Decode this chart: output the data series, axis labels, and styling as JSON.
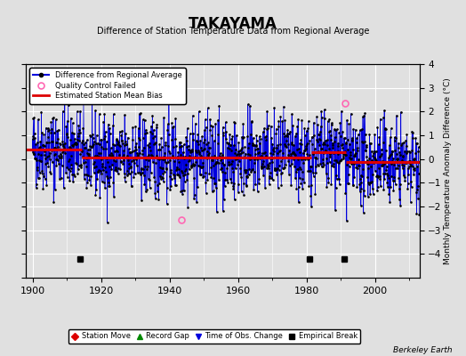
{
  "title": "TAKAYAMA",
  "subtitle": "Difference of Station Temperature Data from Regional Average",
  "ylabel": "Monthly Temperature Anomaly Difference (°C)",
  "xlim": [
    1898,
    2013
  ],
  "ylim": [
    -5,
    4
  ],
  "yticks": [
    -4,
    -3,
    -2,
    -1,
    0,
    1,
    2,
    3,
    4
  ],
  "xticks": [
    1900,
    1920,
    1940,
    1960,
    1980,
    2000
  ],
  "background_color": "#e0e0e0",
  "plot_bg_color": "#e0e0e0",
  "grid_color": "#ffffff",
  "seed": 42,
  "data_std": 0.85,
  "bias_segments": [
    {
      "x_start": 1898,
      "x_end": 1914.5,
      "bias": 0.4
    },
    {
      "x_start": 1914.5,
      "x_end": 1981.5,
      "bias": 0.07
    },
    {
      "x_start": 1981.5,
      "x_end": 1991.5,
      "bias": 0.27
    },
    {
      "x_start": 1991.5,
      "x_end": 2013,
      "bias": -0.12
    }
  ],
  "empirical_breaks": [
    {
      "year": 1914.5,
      "plot_year": 1914
    },
    {
      "year": 1981.5,
      "plot_year": 1981
    },
    {
      "year": 1991.5,
      "plot_year": 1991
    }
  ],
  "qc_failed": [
    {
      "year": 1943.5,
      "value": -2.55
    },
    {
      "year": 1991.4,
      "value": 2.35
    }
  ],
  "legend1_items": [
    {
      "label": "Difference from Regional Average"
    },
    {
      "label": "Quality Control Failed"
    },
    {
      "label": "Estimated Station Mean Bias"
    }
  ],
  "legend2_items": [
    {
      "label": "Station Move"
    },
    {
      "label": "Record Gap"
    },
    {
      "label": "Time of Obs. Change"
    },
    {
      "label": "Empirical Break"
    }
  ],
  "berkeley_earth_label": "Berkeley Earth",
  "line_color": "#0000dd",
  "dot_color": "#000000",
  "bias_color": "#dd0000",
  "qc_color": "#ff69b4",
  "break_color": "#000000",
  "sm_color": "#dd0000",
  "rg_color": "#008800",
  "toc_color": "#0000dd"
}
